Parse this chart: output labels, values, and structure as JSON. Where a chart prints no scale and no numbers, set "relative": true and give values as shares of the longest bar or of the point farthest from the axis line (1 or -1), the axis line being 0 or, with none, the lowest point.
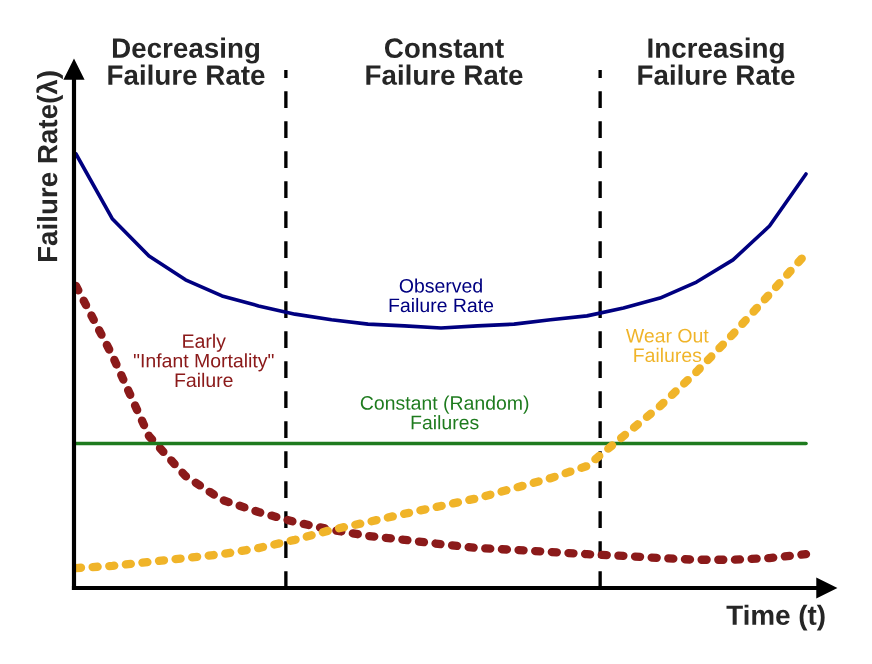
{
  "chart_data": {
    "type": "line",
    "relative": true,
    "xlabel": "Time (t)",
    "ylabel": "Failure Rate(λ)",
    "legend": false,
    "marker": "none",
    "categories": [
      null,
      null,
      null,
      null,
      null,
      null,
      null,
      null,
      null,
      null,
      null,
      null,
      null,
      null,
      null,
      null,
      null,
      null,
      null,
      null,
      null
    ],
    "series": [
      {
        "name": "Observed\nFailure Rate",
        "color": "#000080",
        "line_style": "solid",
        "values": [
          1.0,
          0.85,
          0.765,
          0.71,
          0.673,
          0.65,
          0.631,
          0.618,
          0.608,
          0.604,
          0.599,
          0.604,
          0.608,
          0.618,
          0.627,
          0.645,
          0.668,
          0.705,
          0.756,
          0.834,
          0.954
        ]
      },
      {
        "name": "Early\n\"Infant Mortality\"\nFailure",
        "color": "#8b1a1a",
        "line_style": "dotted",
        "values": [
          0.696,
          0.535,
          0.35,
          0.258,
          0.203,
          0.175,
          0.152,
          0.134,
          0.12,
          0.111,
          0.101,
          0.092,
          0.088,
          0.083,
          0.078,
          0.074,
          0.069,
          0.065,
          0.065,
          0.069,
          0.078
        ]
      },
      {
        "name": "Constant (Random)\nFailures",
        "color": "#1e7b1e",
        "line_style": "solid",
        "values": [
          0.333,
          0.333,
          0.333,
          0.333,
          0.333,
          0.333,
          0.333,
          0.333,
          0.333,
          0.333,
          0.333,
          0.333,
          0.333,
          0.333,
          0.333,
          0.333,
          0.333,
          0.333,
          0.333,
          0.333,
          0.333
        ]
      },
      {
        "name": "Wear Out\nFailures",
        "color": "#f0b429",
        "line_style": "dotted",
        "values": [
          0.046,
          0.051,
          0.06,
          0.069,
          0.078,
          0.092,
          0.111,
          0.134,
          0.152,
          0.171,
          0.189,
          0.207,
          0.23,
          0.253,
          0.281,
          0.35,
          0.419,
          0.498,
          0.585,
          0.677,
          0.77
        ]
      }
    ],
    "annotations": [
      "Decreasing\nFailure Rate",
      "Constant\nFailure Rate",
      "Increasing\nFailure Rate"
    ]
  }
}
